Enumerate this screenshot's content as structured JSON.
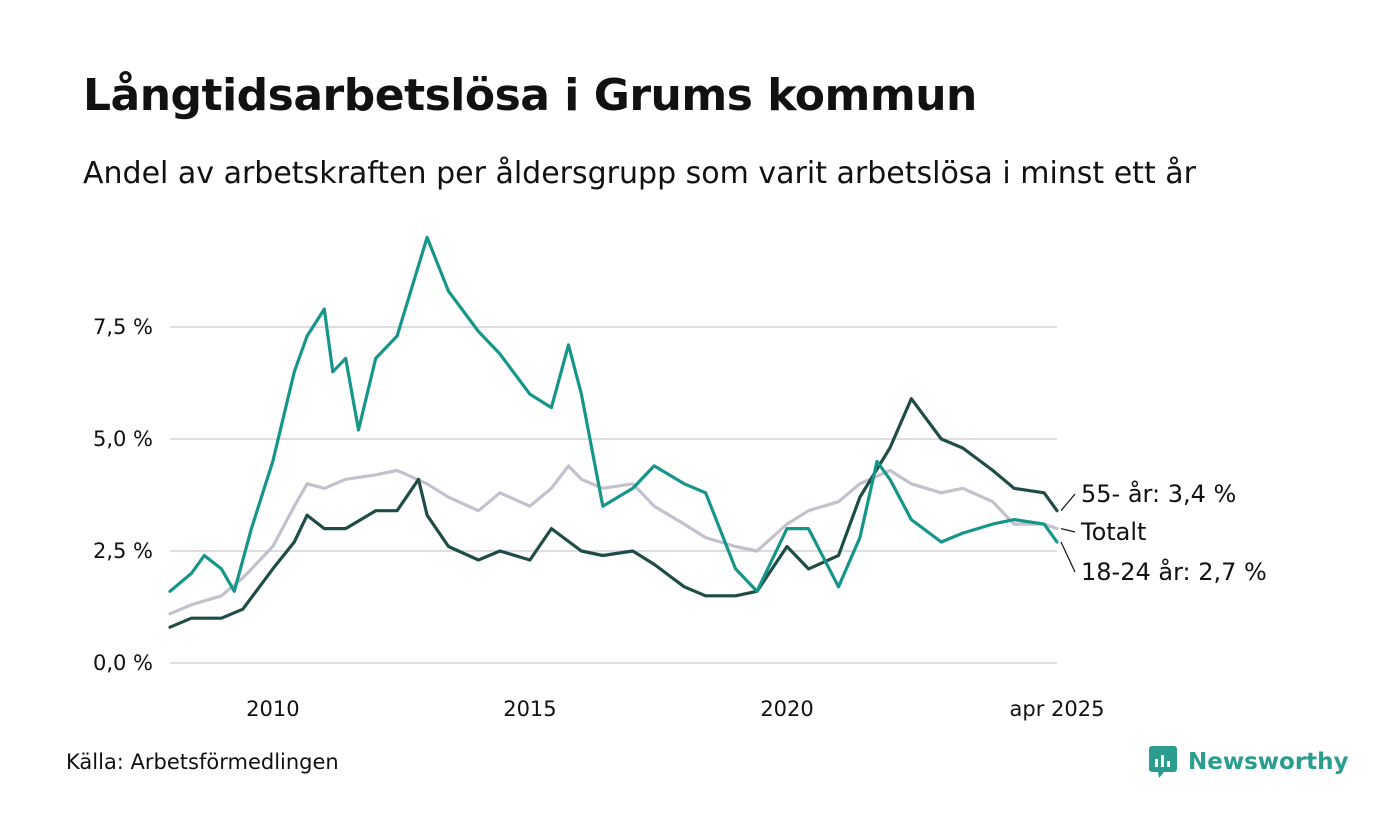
{
  "header": {
    "title": "Långtidsarbetslösa i Grums kommun",
    "subtitle": "Andel av arbetskraften per åldersgrupp som varit arbetslösa i minst ett år"
  },
  "footer": {
    "source": "Källa: Arbetsförmedlingen",
    "brand": "Newsworthy"
  },
  "colors": {
    "totalt": "#c3c1cc",
    "age55": "#1f4d45",
    "age1824": "#16958a",
    "grid": "#dddddd",
    "brand": "#2a9d8f"
  },
  "chart_data": {
    "type": "line",
    "ylim": [
      0,
      10
    ],
    "xlim": [
      "2008-01",
      "2025-04"
    ],
    "yticks": [
      {
        "value": 0,
        "label": "0,0 %"
      },
      {
        "value": 2.5,
        "label": "2,5 %"
      },
      {
        "value": 5,
        "label": "5,0 %"
      },
      {
        "value": 7.5,
        "label": "7,5 %"
      }
    ],
    "xticks": [
      {
        "value": "2010-01",
        "label": "2010"
      },
      {
        "value": "2015-01",
        "label": "2015"
      },
      {
        "value": "2020-01",
        "label": "2020"
      },
      {
        "value": "2025-04",
        "label": "apr 2025"
      }
    ],
    "grid": true,
    "series": [
      {
        "name": "Totalt",
        "key": "totalt",
        "end_label": "Totalt",
        "points": [
          [
            "2008-01",
            1.1
          ],
          [
            "2008-06",
            1.3
          ],
          [
            "2009-01",
            1.5
          ],
          [
            "2009-06",
            1.9
          ],
          [
            "2010-01",
            2.6
          ],
          [
            "2010-06",
            3.5
          ],
          [
            "2010-09",
            4.0
          ],
          [
            "2011-01",
            3.9
          ],
          [
            "2011-06",
            4.1
          ],
          [
            "2012-01",
            4.2
          ],
          [
            "2012-06",
            4.3
          ],
          [
            "2013-01",
            4.0
          ],
          [
            "2013-06",
            3.7
          ],
          [
            "2014-01",
            3.4
          ],
          [
            "2014-06",
            3.8
          ],
          [
            "2015-01",
            3.5
          ],
          [
            "2015-06",
            3.9
          ],
          [
            "2015-10",
            4.4
          ],
          [
            "2016-01",
            4.1
          ],
          [
            "2016-06",
            3.9
          ],
          [
            "2017-01",
            4.0
          ],
          [
            "2017-06",
            3.5
          ],
          [
            "2018-01",
            3.1
          ],
          [
            "2018-06",
            2.8
          ],
          [
            "2019-01",
            2.6
          ],
          [
            "2019-06",
            2.5
          ],
          [
            "2020-01",
            3.1
          ],
          [
            "2020-06",
            3.4
          ],
          [
            "2021-01",
            3.6
          ],
          [
            "2021-06",
            4.0
          ],
          [
            "2022-01",
            4.3
          ],
          [
            "2022-06",
            4.0
          ],
          [
            "2023-01",
            3.8
          ],
          [
            "2023-06",
            3.9
          ],
          [
            "2024-01",
            3.6
          ],
          [
            "2024-06",
            3.1
          ],
          [
            "2025-01",
            3.1
          ],
          [
            "2025-04",
            3.0
          ]
        ]
      },
      {
        "name": "55- år",
        "key": "age55",
        "end_label": "55- år: 3,4 %",
        "points": [
          [
            "2008-01",
            0.8
          ],
          [
            "2008-06",
            1.0
          ],
          [
            "2009-01",
            1.0
          ],
          [
            "2009-06",
            1.2
          ],
          [
            "2010-01",
            2.1
          ],
          [
            "2010-06",
            2.7
          ],
          [
            "2010-09",
            3.3
          ],
          [
            "2011-01",
            3.0
          ],
          [
            "2011-06",
            3.0
          ],
          [
            "2012-01",
            3.4
          ],
          [
            "2012-06",
            3.4
          ],
          [
            "2012-11",
            4.1
          ],
          [
            "2013-01",
            3.3
          ],
          [
            "2013-06",
            2.6
          ],
          [
            "2014-01",
            2.3
          ],
          [
            "2014-06",
            2.5
          ],
          [
            "2015-01",
            2.3
          ],
          [
            "2015-06",
            3.0
          ],
          [
            "2016-01",
            2.5
          ],
          [
            "2016-06",
            2.4
          ],
          [
            "2017-01",
            2.5
          ],
          [
            "2017-06",
            2.2
          ],
          [
            "2018-01",
            1.7
          ],
          [
            "2018-06",
            1.5
          ],
          [
            "2019-01",
            1.5
          ],
          [
            "2019-06",
            1.6
          ],
          [
            "2020-01",
            2.6
          ],
          [
            "2020-06",
            2.1
          ],
          [
            "2021-01",
            2.4
          ],
          [
            "2021-06",
            3.7
          ],
          [
            "2022-01",
            4.8
          ],
          [
            "2022-06",
            5.9
          ],
          [
            "2023-01",
            5.0
          ],
          [
            "2023-06",
            4.8
          ],
          [
            "2024-01",
            4.3
          ],
          [
            "2024-06",
            3.9
          ],
          [
            "2025-01",
            3.8
          ],
          [
            "2025-04",
            3.4
          ]
        ]
      },
      {
        "name": "18-24 år",
        "key": "age1824",
        "end_label": "18-24 år: 2,7 %",
        "points": [
          [
            "2008-01",
            1.6
          ],
          [
            "2008-06",
            2.0
          ],
          [
            "2008-09",
            2.4
          ],
          [
            "2009-01",
            2.1
          ],
          [
            "2009-04",
            1.6
          ],
          [
            "2009-08",
            3.0
          ],
          [
            "2010-01",
            4.5
          ],
          [
            "2010-06",
            6.5
          ],
          [
            "2010-09",
            7.3
          ],
          [
            "2011-01",
            7.9
          ],
          [
            "2011-03",
            6.5
          ],
          [
            "2011-06",
            6.8
          ],
          [
            "2011-09",
            5.2
          ],
          [
            "2012-01",
            6.8
          ],
          [
            "2012-06",
            7.3
          ],
          [
            "2013-01",
            9.5
          ],
          [
            "2013-06",
            8.3
          ],
          [
            "2014-01",
            7.4
          ],
          [
            "2014-06",
            6.9
          ],
          [
            "2015-01",
            6.0
          ],
          [
            "2015-06",
            5.7
          ],
          [
            "2015-10",
            7.1
          ],
          [
            "2016-01",
            6.0
          ],
          [
            "2016-06",
            3.5
          ],
          [
            "2017-01",
            3.9
          ],
          [
            "2017-06",
            4.4
          ],
          [
            "2018-01",
            4.0
          ],
          [
            "2018-06",
            3.8
          ],
          [
            "2019-01",
            2.1
          ],
          [
            "2019-06",
            1.6
          ],
          [
            "2020-01",
            3.0
          ],
          [
            "2020-06",
            3.0
          ],
          [
            "2021-01",
            1.7
          ],
          [
            "2021-06",
            2.8
          ],
          [
            "2021-10",
            4.5
          ],
          [
            "2022-01",
            4.1
          ],
          [
            "2022-06",
            3.2
          ],
          [
            "2023-01",
            2.7
          ],
          [
            "2023-06",
            2.9
          ],
          [
            "2024-01",
            3.1
          ],
          [
            "2024-06",
            3.2
          ],
          [
            "2025-01",
            3.1
          ],
          [
            "2025-04",
            2.7
          ]
        ]
      }
    ]
  }
}
